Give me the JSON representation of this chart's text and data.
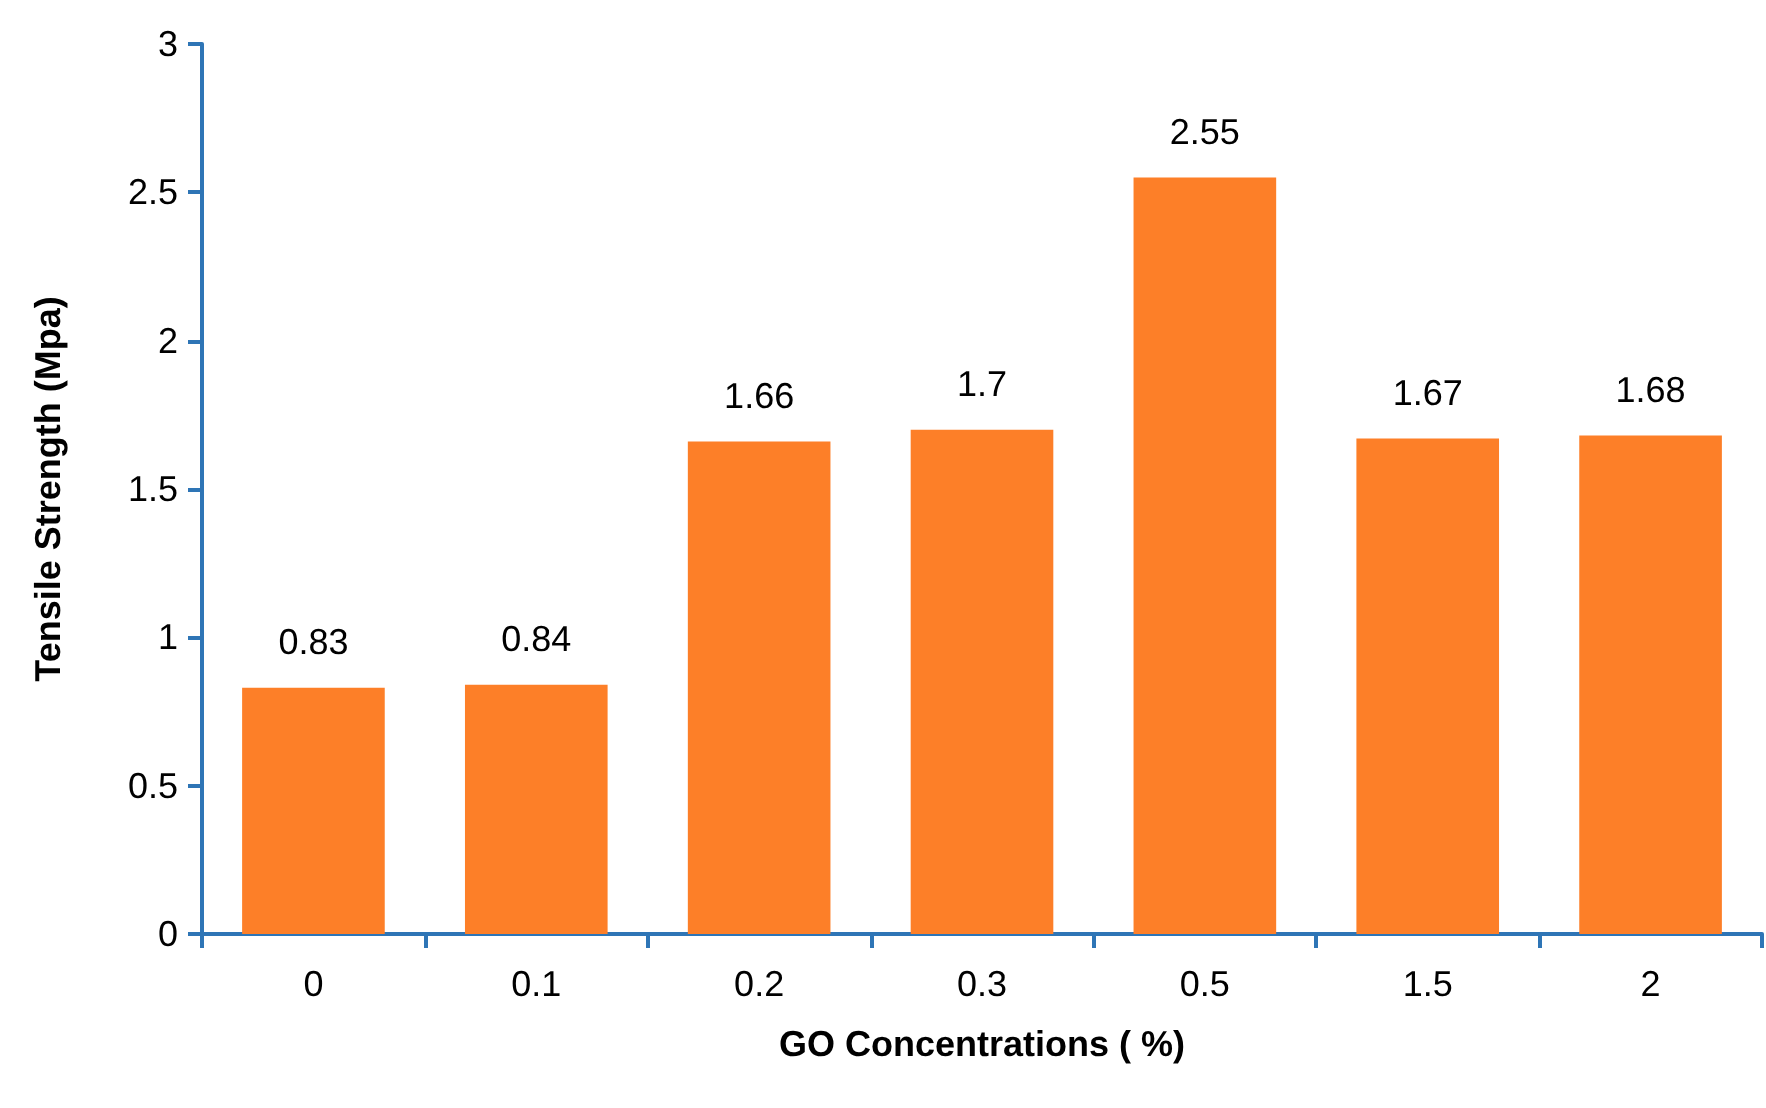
{
  "chart_data": {
    "type": "bar",
    "xlabel": "GO Concentrations ( %)",
    "ylabel": "Tensile Strength (Mpa)",
    "categories": [
      "0",
      "0.1",
      "0.2",
      "0.3",
      "0.5",
      "1.5",
      "2"
    ],
    "values": [
      0.83,
      0.84,
      1.66,
      1.7,
      2.55,
      1.67,
      1.68
    ],
    "color": "#fd7f28",
    "ylim": [
      0,
      3
    ],
    "yticks": [
      0,
      0.5,
      1,
      1.5,
      2,
      2.5,
      3
    ],
    "data_labels": true
  }
}
